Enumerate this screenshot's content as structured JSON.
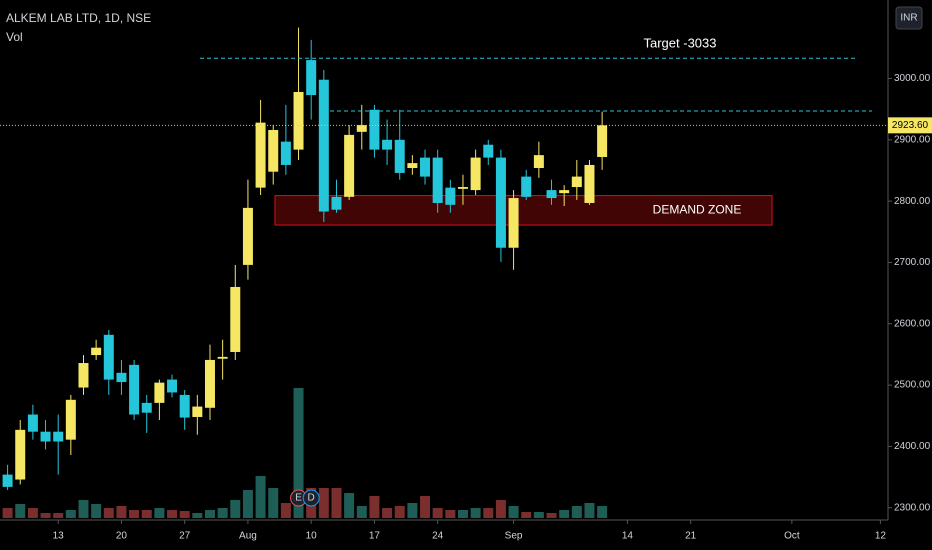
{
  "chart_data": {
    "type": "candlestick",
    "title": "ALKEM LAB LTD, 1D, NSE",
    "subtitle": "Vol",
    "currency": "INR",
    "up_color": "#f5e663",
    "down_color": "#26c6da",
    "volume_up_color": "#1e5e57",
    "volume_down_color": "#7a2e2e",
    "open": [
      2354,
      2346,
      2452,
      2424,
      2424,
      2411,
      2496,
      2549,
      2582,
      2520,
      2533,
      2471,
      2471,
      2509,
      2484,
      2448,
      2463,
      2543,
      2554,
      2696,
      2822,
      2848,
      2897,
      2884,
      3030,
      2998,
      2807,
      2807,
      2913,
      2949,
      2900,
      2900,
      2854,
      2871,
      2871,
      2822,
      2820,
      2818,
      2892,
      2871,
      2724,
      2840,
      2854,
      2818,
      2813,
      2823,
      2797,
      2872
    ],
    "high": [
      2370,
      2443,
      2468,
      2443,
      2452,
      2484,
      2549,
      2574,
      2590,
      2541,
      2541,
      2484,
      2509,
      2517,
      2492,
      2484,
      2566,
      2574,
      2696,
      2835,
      2965,
      2924,
      2957,
      3083,
      3063,
      3014,
      2835,
      2924,
      2957,
      2957,
      2933,
      2949,
      2875,
      2884,
      2884,
      2835,
      2843,
      2884,
      2900,
      2884,
      2818,
      2851,
      2897,
      2835,
      2826,
      2867,
      2867,
      2946
    ],
    "low": [
      2329,
      2338,
      2411,
      2395,
      2354,
      2386,
      2484,
      2541,
      2484,
      2484,
      2443,
      2422,
      2443,
      2480,
      2427,
      2419,
      2443,
      2509,
      2541,
      2672,
      2810,
      2827,
      2843,
      2867,
      2933,
      2766,
      2781,
      2802,
      2884,
      2871,
      2859,
      2835,
      2843,
      2827,
      2781,
      2781,
      2794,
      2810,
      2859,
      2701,
      2688,
      2802,
      2838,
      2794,
      2792,
      2802,
      2794,
      2851
    ],
    "close": [
      2334,
      2427,
      2424,
      2408,
      2408,
      2476,
      2536,
      2561,
      2509,
      2505,
      2452,
      2455,
      2504,
      2488,
      2447,
      2465,
      2541,
      2546,
      2660,
      2789,
      2928,
      2916,
      2859,
      2978,
      2973,
      2783,
      2786,
      2908,
      2924,
      2884,
      2884,
      2846,
      2862,
      2840,
      2797,
      2794,
      2823,
      2871,
      2871,
      2724,
      2805,
      2807,
      2875,
      2805,
      2818,
      2840,
      2859,
      2923.6
    ],
    "volume": [
      10,
      14,
      10,
      5,
      5,
      8,
      18,
      14,
      10,
      12,
      8,
      8,
      10,
      8,
      7,
      5,
      8,
      10,
      18,
      28,
      42,
      30,
      15,
      130,
      30,
      30,
      30,
      25,
      12,
      22,
      10,
      12,
      15,
      22,
      10,
      8,
      8,
      10,
      10,
      18,
      12,
      6,
      6,
      5,
      8,
      12,
      15,
      12
    ],
    "volume_ylim": [
      0,
      130
    ],
    "xlim": [
      -0.6,
      69.6
    ],
    "xticks": [
      {
        "value": 4,
        "label": "13"
      },
      {
        "value": 9,
        "label": "20"
      },
      {
        "value": 14,
        "label": "27"
      },
      {
        "value": 19,
        "label": "Aug"
      },
      {
        "value": 24,
        "label": "10"
      },
      {
        "value": 29,
        "label": "17"
      },
      {
        "value": 34,
        "label": "24"
      },
      {
        "value": 40,
        "label": "Sep"
      },
      {
        "value": 49,
        "label": "14"
      },
      {
        "value": 54,
        "label": "21"
      },
      {
        "value": 62,
        "label": "Oct"
      },
      {
        "value": 69,
        "label": "12"
      }
    ],
    "ylim": [
      2280,
      3128
    ],
    "yticks": [
      {
        "value": 2300,
        "label": "2300.00"
      },
      {
        "value": 2400,
        "label": "2400.00"
      },
      {
        "value": 2500,
        "label": "2500.00"
      },
      {
        "value": 2600,
        "label": "2600.00"
      },
      {
        "value": 2700,
        "label": "2700.00"
      },
      {
        "value": 2800,
        "label": "2800.00"
      },
      {
        "value": 2900,
        "label": "2900.00"
      },
      {
        "value": 3000,
        "label": "3000.00"
      }
    ],
    "last_price": {
      "value": 2923.6,
      "label": "2923.60"
    },
    "target": {
      "value": 3033,
      "label": "Target -3033"
    },
    "resistance": 2947,
    "demand_zone": {
      "label": "DEMAND ZONE",
      "low": 2761,
      "high": 2809
    },
    "events": [
      "E",
      "D"
    ]
  }
}
